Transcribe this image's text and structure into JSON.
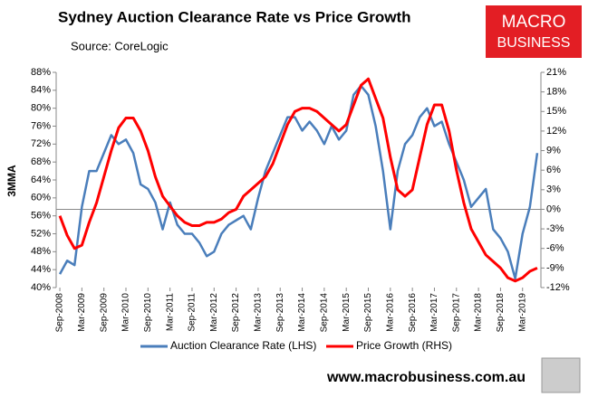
{
  "chart_data": {
    "type": "line",
    "title": "Sydney Auction Clearance Rate vs Price Growth",
    "subtitle": "Source: CoreLogic",
    "y_label": "3MMA",
    "categories": [
      "Sep-2008",
      null,
      null,
      "Mar-2009",
      null,
      null,
      "Sep-2009",
      null,
      null,
      "Mar-2010",
      null,
      null,
      "Sep-2010",
      null,
      null,
      "Mar-2011",
      null,
      null,
      "Sep-2011",
      null,
      null,
      "Mar-2012",
      null,
      null,
      "Sep-2012",
      null,
      null,
      "Mar-2013",
      null,
      null,
      "Sep-2013",
      null,
      null,
      "Mar-2014",
      null,
      null,
      "Sep-2014",
      null,
      null,
      "Mar-2015",
      null,
      null,
      "Sep-2015",
      null,
      null,
      "Mar-2016",
      null,
      null,
      "Sep-2016",
      null,
      null,
      "Mar-2017",
      null,
      null,
      "Sep-2017",
      null,
      null,
      "Mar-2018",
      null,
      null,
      "Sep-2018",
      null,
      null,
      "Mar-2019",
      null,
      null
    ],
    "series": [
      {
        "name": "Auction Clearance Rate (LHS)",
        "color": "#4a7ebb",
        "axis": "y",
        "values": [
          43,
          46,
          45,
          58,
          66,
          66,
          70,
          74,
          72,
          73,
          70,
          63,
          62,
          59,
          53,
          59,
          54,
          52,
          52,
          50,
          47,
          48,
          52,
          54,
          55,
          56,
          53,
          60,
          66,
          70,
          74,
          78,
          78,
          75,
          77,
          75,
          72,
          76,
          73,
          75,
          83,
          85,
          83,
          76,
          66,
          53,
          66,
          72,
          74,
          78,
          80,
          76,
          77,
          72,
          68,
          64,
          58,
          60,
          62,
          53,
          51,
          48,
          42,
          52,
          58,
          70
        ]
      },
      {
        "name": "Price Growth (RHS)",
        "color": "#ff0000",
        "axis": "y2",
        "values": [
          -1,
          -4,
          -6,
          -5.5,
          -2,
          1,
          5,
          9,
          12.5,
          14,
          14,
          12,
          9,
          5,
          2,
          0.5,
          -1,
          -2,
          -2.5,
          -2.5,
          -2,
          -2,
          -1.5,
          -0.5,
          0,
          2,
          3,
          4,
          5,
          7,
          10,
          13,
          15,
          15.5,
          15.5,
          15,
          14,
          13,
          12,
          13,
          16,
          19,
          20,
          17,
          14,
          8,
          3,
          2,
          3,
          8,
          13,
          16,
          16,
          12,
          6,
          1,
          -3,
          -5,
          -7,
          -8,
          -9,
          -10.5,
          -11,
          -10.5,
          -9.5,
          -9
        ]
      }
    ],
    "ylim": [
      40,
      88
    ],
    "yticks": [
      {
        "value": 40,
        "label": "40%"
      },
      {
        "value": 44,
        "label": "44%"
      },
      {
        "value": 48,
        "label": "48%"
      },
      {
        "value": 52,
        "label": "52%"
      },
      {
        "value": 56,
        "label": "56%"
      },
      {
        "value": 60,
        "label": "60%"
      },
      {
        "value": 64,
        "label": "64%"
      },
      {
        "value": 68,
        "label": "68%"
      },
      {
        "value": 72,
        "label": "72%"
      },
      {
        "value": 76,
        "label": "76%"
      },
      {
        "value": 80,
        "label": "80%"
      },
      {
        "value": 84,
        "label": "84%"
      },
      {
        "value": 88,
        "label": "88%"
      }
    ],
    "y2lim": [
      -12,
      21
    ],
    "y2ticks": [
      {
        "value": -12,
        "label": "-12%"
      },
      {
        "value": -9,
        "label": "-9%"
      },
      {
        "value": -6,
        "label": "-6%"
      },
      {
        "value": -3,
        "label": "-3%"
      },
      {
        "value": 0,
        "label": "0%"
      },
      {
        "value": 3,
        "label": "3%"
      },
      {
        "value": 6,
        "label": "6%"
      },
      {
        "value": 9,
        "label": "9%"
      },
      {
        "value": 12,
        "label": "12%"
      },
      {
        "value": 15,
        "label": "15%"
      },
      {
        "value": 18,
        "label": "18%"
      },
      {
        "value": 21,
        "label": "21%"
      }
    ],
    "grid": false,
    "legend": "bottom"
  },
  "logo": {
    "line1": "MACRO",
    "line2": "BUSINESS"
  },
  "footer": "www.macrobusiness.com.au"
}
